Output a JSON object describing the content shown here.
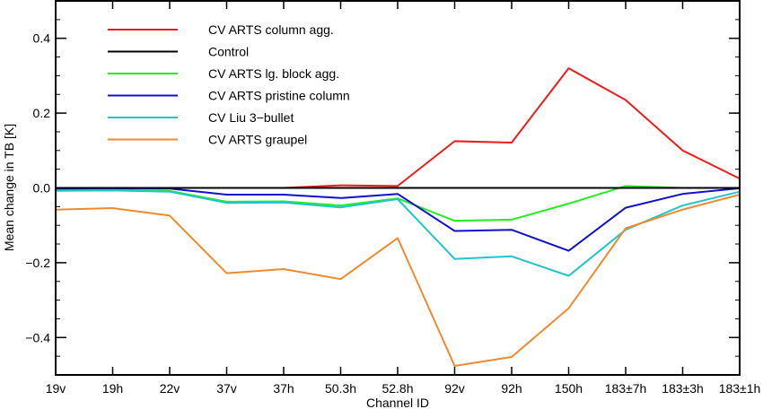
{
  "chart_data": {
    "type": "line",
    "title": "",
    "xlabel": "Channel ID",
    "ylabel": "Mean change in TB [K]",
    "categories": [
      "19v",
      "19h",
      "22v",
      "37v",
      "37h",
      "50.3h",
      "52.8h",
      "92v",
      "92h",
      "150h",
      "183±7h",
      "183±3h",
      "183±1h"
    ],
    "ylim": [
      -0.5,
      0.5
    ],
    "yticks": [
      -0.4,
      -0.2,
      0.0,
      0.2,
      0.4
    ],
    "ytick_labels": [
      "−0.4",
      "−0.2",
      "0.0",
      "0.2",
      "0.4"
    ],
    "grid": false,
    "legend_position": "top-left",
    "series": [
      {
        "name": "CV ARTS column agg.",
        "color": "#ee1c1c",
        "values": [
          0.0,
          0.0,
          0.0,
          0.0,
          0.0,
          0.007,
          0.005,
          0.125,
          0.121,
          0.32,
          0.235,
          0.1,
          0.025
        ]
      },
      {
        "name": "Control",
        "color": "#000000",
        "values": [
          0,
          0,
          0,
          0,
          0,
          0,
          0,
          0,
          0,
          0,
          0,
          0,
          0
        ]
      },
      {
        "name": "CV ARTS lg. block agg.",
        "color": "#22ee22",
        "values": [
          -0.006,
          -0.005,
          -0.008,
          -0.037,
          -0.036,
          -0.047,
          -0.028,
          -0.088,
          -0.085,
          -0.042,
          0.005,
          0.0,
          0.0
        ]
      },
      {
        "name": "CV ARTS pristine column",
        "color": "#1111cc",
        "values": [
          -0.002,
          -0.001,
          -0.002,
          -0.018,
          -0.018,
          -0.027,
          -0.016,
          -0.115,
          -0.112,
          -0.168,
          -0.053,
          -0.016,
          -0.001
        ]
      },
      {
        "name": "CV Liu 3−bullet",
        "color": "#22c4cc",
        "values": [
          -0.008,
          -0.007,
          -0.01,
          -0.04,
          -0.039,
          -0.052,
          -0.03,
          -0.19,
          -0.183,
          -0.235,
          -0.112,
          -0.047,
          -0.01
        ]
      },
      {
        "name": "CV ARTS graupel",
        "color": "#ef8a2e",
        "values": [
          -0.058,
          -0.054,
          -0.074,
          -0.228,
          -0.217,
          -0.244,
          -0.134,
          -0.476,
          -0.452,
          -0.322,
          -0.108,
          -0.058,
          -0.018
        ]
      }
    ]
  }
}
